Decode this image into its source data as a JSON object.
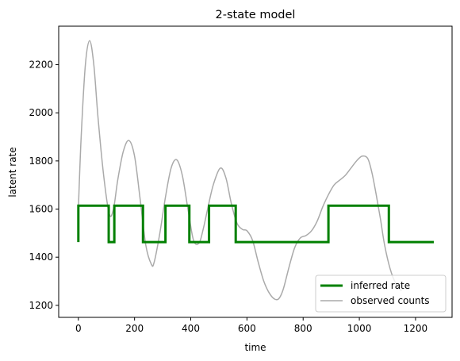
{
  "chart_data": {
    "type": "line",
    "title": "2-state model",
    "xlabel": "time",
    "ylabel": "latent rate",
    "xlim": [
      -70,
      1330
    ],
    "ylim": [
      1150,
      2360
    ],
    "xticks": [
      0,
      200,
      400,
      600,
      800,
      1000,
      1200
    ],
    "yticks": [
      1200,
      1400,
      1600,
      1800,
      2000,
      2200
    ],
    "grid": false,
    "legend": {
      "position": "lower-right",
      "entries": [
        "inferred rate",
        "observed counts"
      ]
    },
    "colors": {
      "inferred rate": "#008000",
      "observed counts": "#aaaaaa"
    },
    "series": [
      {
        "name": "inferred rate",
        "style": "step",
        "x": [
          0,
          0,
          108,
          108,
          128,
          128,
          230,
          230,
          310,
          310,
          395,
          395,
          465,
          465,
          560,
          560,
          890,
          890,
          1105,
          1105,
          1265
        ],
        "y": [
          1463,
          1614,
          1614,
          1463,
          1463,
          1614,
          1614,
          1463,
          1463,
          1614,
          1614,
          1463,
          1463,
          1614,
          1614,
          1463,
          1463,
          1614,
          1614,
          1463,
          1463
        ]
      },
      {
        "name": "observed counts",
        "style": "smooth",
        "x": [
          0,
          10,
          25,
          40,
          55,
          70,
          90,
          110,
          125,
          140,
          160,
          180,
          200,
          220,
          240,
          260,
          270,
          290,
          310,
          330,
          350,
          370,
          390,
          410,
          430,
          445,
          460,
          480,
          505,
          525,
          545,
          565,
          585,
          600,
          620,
          640,
          660,
          680,
          700,
          715,
          730,
          750,
          770,
          790,
          810,
          830,
          850,
          870,
          890,
          910,
          930,
          950,
          970,
          990,
          1010,
          1030,
          1045,
          1060,
          1075,
          1090,
          1110,
          1130,
          1150
        ],
        "y": [
          1600,
          1900,
          2200,
          2300,
          2200,
          1980,
          1740,
          1580,
          1600,
          1720,
          1840,
          1885,
          1820,
          1640,
          1450,
          1370,
          1380,
          1500,
          1650,
          1770,
          1805,
          1740,
          1600,
          1470,
          1460,
          1520,
          1600,
          1700,
          1770,
          1730,
          1620,
          1540,
          1515,
          1510,
          1470,
          1380,
          1300,
          1250,
          1225,
          1230,
          1270,
          1360,
          1440,
          1480,
          1490,
          1510,
          1550,
          1610,
          1660,
          1700,
          1720,
          1740,
          1770,
          1800,
          1820,
          1810,
          1750,
          1660,
          1560,
          1450,
          1350,
          1290,
          1260
        ]
      }
    ]
  }
}
